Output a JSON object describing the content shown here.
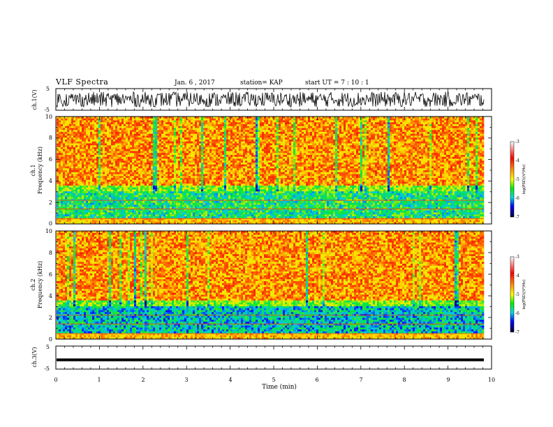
{
  "header": {
    "title": "VLF Spectra",
    "date": "Jan. 6 , 2017",
    "station": "station= KAP",
    "start": "start  UT =   7 : 10 : 1"
  },
  "colors": {
    "spectrogram_low": "#0000cc",
    "spectrogram_mid": "#00e040",
    "spectrogram_high": "#ff2000",
    "trace": "#000000"
  },
  "chart_data": [
    {
      "type": "line",
      "name": "ch1-waveform",
      "ylabel": "ch.1(V)",
      "ylim": [
        -5,
        5
      ],
      "yticks": [
        "5",
        "-5"
      ],
      "xlim": [
        0,
        10
      ],
      "amplitude_range": [
        -3.5,
        3.5
      ]
    },
    {
      "type": "heatmap",
      "name": "ch1-spectrogram",
      "ylabel": "ch.1\nFrequency (kHz)",
      "ylim": [
        0,
        10
      ],
      "yticks": [
        "0",
        "2",
        "4",
        "6",
        "8",
        "10"
      ],
      "xlim": [
        0,
        9.8
      ],
      "colorbar": {
        "label": "log(PSD)(V²/Hz)",
        "range": [
          -7,
          -3
        ],
        "ticks": [
          "-3",
          "-4",
          "-5",
          "-6",
          "-7"
        ]
      }
    },
    {
      "type": "heatmap",
      "name": "ch2-spectrogram",
      "ylabel": "ch.2\nFrequency (kHz)",
      "ylim": [
        0,
        10
      ],
      "yticks": [
        "0",
        "2",
        "4",
        "6",
        "8",
        "10"
      ],
      "xlim": [
        0,
        9.8
      ],
      "colorbar": {
        "label": "log(PSD)(V²/Hz)",
        "range": [
          -7,
          -3
        ],
        "ticks": [
          "-3",
          "-4",
          "-5",
          "-6",
          "-7"
        ]
      }
    },
    {
      "type": "line",
      "name": "ch3-waveform",
      "ylabel": "ch.3(V)",
      "ylim": [
        -5,
        5
      ],
      "yticks": [
        "5",
        "-5"
      ],
      "xlim": [
        0,
        10
      ],
      "constant_value": -1
    }
  ],
  "xaxis": {
    "label": "Time (min)",
    "ticks": [
      "0",
      "1",
      "2",
      "3",
      "4",
      "5",
      "6",
      "7",
      "8",
      "9",
      "10"
    ]
  }
}
